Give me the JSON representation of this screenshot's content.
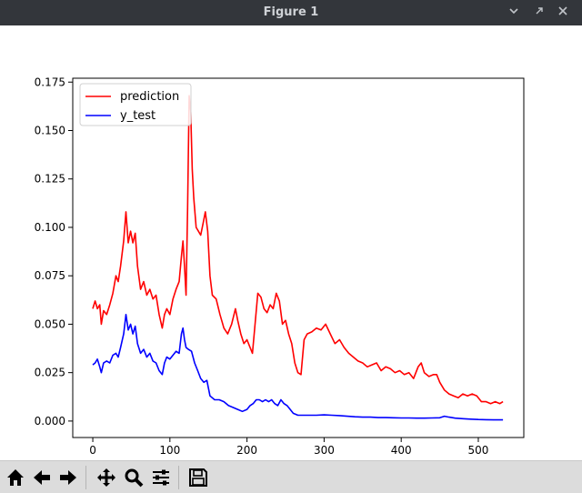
{
  "window": {
    "title": "Figure 1"
  },
  "toolbar": {
    "buttons": [
      {
        "name": "home-button",
        "icon": "home-icon"
      },
      {
        "name": "back-button",
        "icon": "arrow-left-icon"
      },
      {
        "name": "forward-button",
        "icon": "arrow-right-icon"
      },
      {
        "name": "pan-button",
        "icon": "move-icon"
      },
      {
        "name": "zoom-button",
        "icon": "magnifier-icon"
      },
      {
        "name": "configure-subplots-button",
        "icon": "sliders-icon"
      },
      {
        "name": "save-button",
        "icon": "floppy-disk-icon"
      }
    ]
  },
  "chart_data": {
    "type": "line",
    "title": "",
    "xlabel": "",
    "ylabel": "",
    "xlim": [
      -26,
      559
    ],
    "ylim": [
      -0.0085,
      0.177
    ],
    "xticks": [
      0,
      100,
      200,
      300,
      400,
      500
    ],
    "xtick_labels": [
      "0",
      "100",
      "200",
      "300",
      "400",
      "500"
    ],
    "yticks": [
      0.0,
      0.025,
      0.05,
      0.075,
      0.1,
      0.125,
      0.15,
      0.175
    ],
    "ytick_labels": [
      "0.000",
      "0.025",
      "0.050",
      "0.075",
      "0.100",
      "0.125",
      "0.150",
      "0.175"
    ],
    "legend": "upper-left",
    "grid": false,
    "series": [
      {
        "name": "prediction",
        "color": "#ff0000",
        "points": [
          [
            0,
            0.058
          ],
          [
            3,
            0.062
          ],
          [
            6,
            0.058
          ],
          [
            9,
            0.06
          ],
          [
            11,
            0.05
          ],
          [
            14,
            0.057
          ],
          [
            18,
            0.055
          ],
          [
            22,
            0.06
          ],
          [
            26,
            0.066
          ],
          [
            30,
            0.075
          ],
          [
            33,
            0.072
          ],
          [
            36,
            0.08
          ],
          [
            40,
            0.093
          ],
          [
            43,
            0.108
          ],
          [
            46,
            0.092
          ],
          [
            49,
            0.098
          ],
          [
            52,
            0.092
          ],
          [
            55,
            0.097
          ],
          [
            58,
            0.08
          ],
          [
            62,
            0.068
          ],
          [
            66,
            0.072
          ],
          [
            70,
            0.065
          ],
          [
            74,
            0.068
          ],
          [
            78,
            0.063
          ],
          [
            82,
            0.065
          ],
          [
            86,
            0.055
          ],
          [
            90,
            0.048
          ],
          [
            93,
            0.055
          ],
          [
            96,
            0.058
          ],
          [
            100,
            0.055
          ],
          [
            104,
            0.063
          ],
          [
            108,
            0.068
          ],
          [
            112,
            0.072
          ],
          [
            115,
            0.085
          ],
          [
            117,
            0.093
          ],
          [
            119,
            0.08
          ],
          [
            121,
            0.065
          ],
          [
            123,
            0.11
          ],
          [
            125,
            0.168
          ],
          [
            127,
            0.16
          ],
          [
            129,
            0.13
          ],
          [
            131,
            0.115
          ],
          [
            134,
            0.1
          ],
          [
            137,
            0.098
          ],
          [
            140,
            0.096
          ],
          [
            143,
            0.102
          ],
          [
            146,
            0.108
          ],
          [
            149,
            0.098
          ],
          [
            152,
            0.075
          ],
          [
            155,
            0.065
          ],
          [
            160,
            0.063
          ],
          [
            165,
            0.055
          ],
          [
            170,
            0.048
          ],
          [
            175,
            0.045
          ],
          [
            180,
            0.05
          ],
          [
            185,
            0.058
          ],
          [
            188,
            0.052
          ],
          [
            192,
            0.045
          ],
          [
            196,
            0.04
          ],
          [
            200,
            0.042
          ],
          [
            204,
            0.038
          ],
          [
            207,
            0.035
          ],
          [
            210,
            0.048
          ],
          [
            214,
            0.066
          ],
          [
            218,
            0.064
          ],
          [
            222,
            0.058
          ],
          [
            226,
            0.056
          ],
          [
            230,
            0.06
          ],
          [
            234,
            0.058
          ],
          [
            238,
            0.066
          ],
          [
            242,
            0.062
          ],
          [
            246,
            0.05
          ],
          [
            250,
            0.052
          ],
          [
            254,
            0.045
          ],
          [
            258,
            0.04
          ],
          [
            262,
            0.03
          ],
          [
            266,
            0.025
          ],
          [
            270,
            0.024
          ],
          [
            274,
            0.042
          ],
          [
            278,
            0.045
          ],
          [
            284,
            0.046
          ],
          [
            290,
            0.048
          ],
          [
            296,
            0.047
          ],
          [
            302,
            0.05
          ],
          [
            308,
            0.045
          ],
          [
            314,
            0.04
          ],
          [
            320,
            0.042
          ],
          [
            326,
            0.038
          ],
          [
            332,
            0.035
          ],
          [
            338,
            0.033
          ],
          [
            344,
            0.031
          ],
          [
            350,
            0.03
          ],
          [
            356,
            0.028
          ],
          [
            362,
            0.029
          ],
          [
            368,
            0.03
          ],
          [
            374,
            0.026
          ],
          [
            380,
            0.028
          ],
          [
            386,
            0.027
          ],
          [
            392,
            0.025
          ],
          [
            398,
            0.026
          ],
          [
            404,
            0.024
          ],
          [
            410,
            0.025
          ],
          [
            416,
            0.022
          ],
          [
            422,
            0.028
          ],
          [
            426,
            0.03
          ],
          [
            430,
            0.025
          ],
          [
            436,
            0.023
          ],
          [
            442,
            0.024
          ],
          [
            446,
            0.024
          ],
          [
            450,
            0.02
          ],
          [
            456,
            0.016
          ],
          [
            462,
            0.014
          ],
          [
            468,
            0.013
          ],
          [
            474,
            0.012
          ],
          [
            480,
            0.014
          ],
          [
            486,
            0.013
          ],
          [
            492,
            0.014
          ],
          [
            498,
            0.013
          ],
          [
            504,
            0.01
          ],
          [
            510,
            0.01
          ],
          [
            516,
            0.009
          ],
          [
            522,
            0.01
          ],
          [
            528,
            0.009
          ],
          [
            532,
            0.01
          ]
        ]
      },
      {
        "name": "y_test",
        "color": "#0000ff",
        "points": [
          [
            0,
            0.029
          ],
          [
            3,
            0.03
          ],
          [
            6,
            0.032
          ],
          [
            9,
            0.028
          ],
          [
            11,
            0.025
          ],
          [
            14,
            0.03
          ],
          [
            18,
            0.031
          ],
          [
            22,
            0.03
          ],
          [
            26,
            0.034
          ],
          [
            30,
            0.035
          ],
          [
            33,
            0.033
          ],
          [
            36,
            0.038
          ],
          [
            40,
            0.045
          ],
          [
            43,
            0.055
          ],
          [
            46,
            0.047
          ],
          [
            49,
            0.05
          ],
          [
            52,
            0.045
          ],
          [
            55,
            0.049
          ],
          [
            58,
            0.04
          ],
          [
            62,
            0.035
          ],
          [
            66,
            0.037
          ],
          [
            70,
            0.033
          ],
          [
            74,
            0.035
          ],
          [
            78,
            0.031
          ],
          [
            82,
            0.03
          ],
          [
            86,
            0.026
          ],
          [
            90,
            0.024
          ],
          [
            93,
            0.03
          ],
          [
            96,
            0.033
          ],
          [
            100,
            0.032
          ],
          [
            104,
            0.034
          ],
          [
            108,
            0.036
          ],
          [
            112,
            0.035
          ],
          [
            115,
            0.045
          ],
          [
            117,
            0.048
          ],
          [
            119,
            0.042
          ],
          [
            121,
            0.038
          ],
          [
            124,
            0.037
          ],
          [
            128,
            0.036
          ],
          [
            132,
            0.03
          ],
          [
            136,
            0.026
          ],
          [
            140,
            0.022
          ],
          [
            144,
            0.02
          ],
          [
            148,
            0.021
          ],
          [
            152,
            0.013
          ],
          [
            158,
            0.011
          ],
          [
            164,
            0.011
          ],
          [
            170,
            0.01
          ],
          [
            176,
            0.008
          ],
          [
            182,
            0.007
          ],
          [
            188,
            0.006
          ],
          [
            194,
            0.005
          ],
          [
            200,
            0.006
          ],
          [
            204,
            0.008
          ],
          [
            208,
            0.009
          ],
          [
            212,
            0.011
          ],
          [
            216,
            0.011
          ],
          [
            220,
            0.01
          ],
          [
            224,
            0.011
          ],
          [
            228,
            0.01
          ],
          [
            232,
            0.011
          ],
          [
            236,
            0.009
          ],
          [
            240,
            0.008
          ],
          [
            244,
            0.011
          ],
          [
            248,
            0.009
          ],
          [
            252,
            0.008
          ],
          [
            256,
            0.006
          ],
          [
            260,
            0.004
          ],
          [
            266,
            0.003
          ],
          [
            272,
            0.003
          ],
          [
            280,
            0.003
          ],
          [
            290,
            0.003
          ],
          [
            300,
            0.0032
          ],
          [
            310,
            0.003
          ],
          [
            320,
            0.0028
          ],
          [
            330,
            0.0025
          ],
          [
            340,
            0.0022
          ],
          [
            350,
            0.002
          ],
          [
            360,
            0.002
          ],
          [
            370,
            0.0018
          ],
          [
            380,
            0.0018
          ],
          [
            390,
            0.0017
          ],
          [
            400,
            0.0016
          ],
          [
            410,
            0.0016
          ],
          [
            420,
            0.0015
          ],
          [
            430,
            0.0015
          ],
          [
            440,
            0.0016
          ],
          [
            450,
            0.0017
          ],
          [
            456,
            0.0025
          ],
          [
            462,
            0.002
          ],
          [
            470,
            0.0015
          ],
          [
            480,
            0.0012
          ],
          [
            490,
            0.001
          ],
          [
            500,
            0.0008
          ],
          [
            510,
            0.0007
          ],
          [
            520,
            0.0006
          ],
          [
            532,
            0.0006
          ]
        ]
      }
    ]
  }
}
